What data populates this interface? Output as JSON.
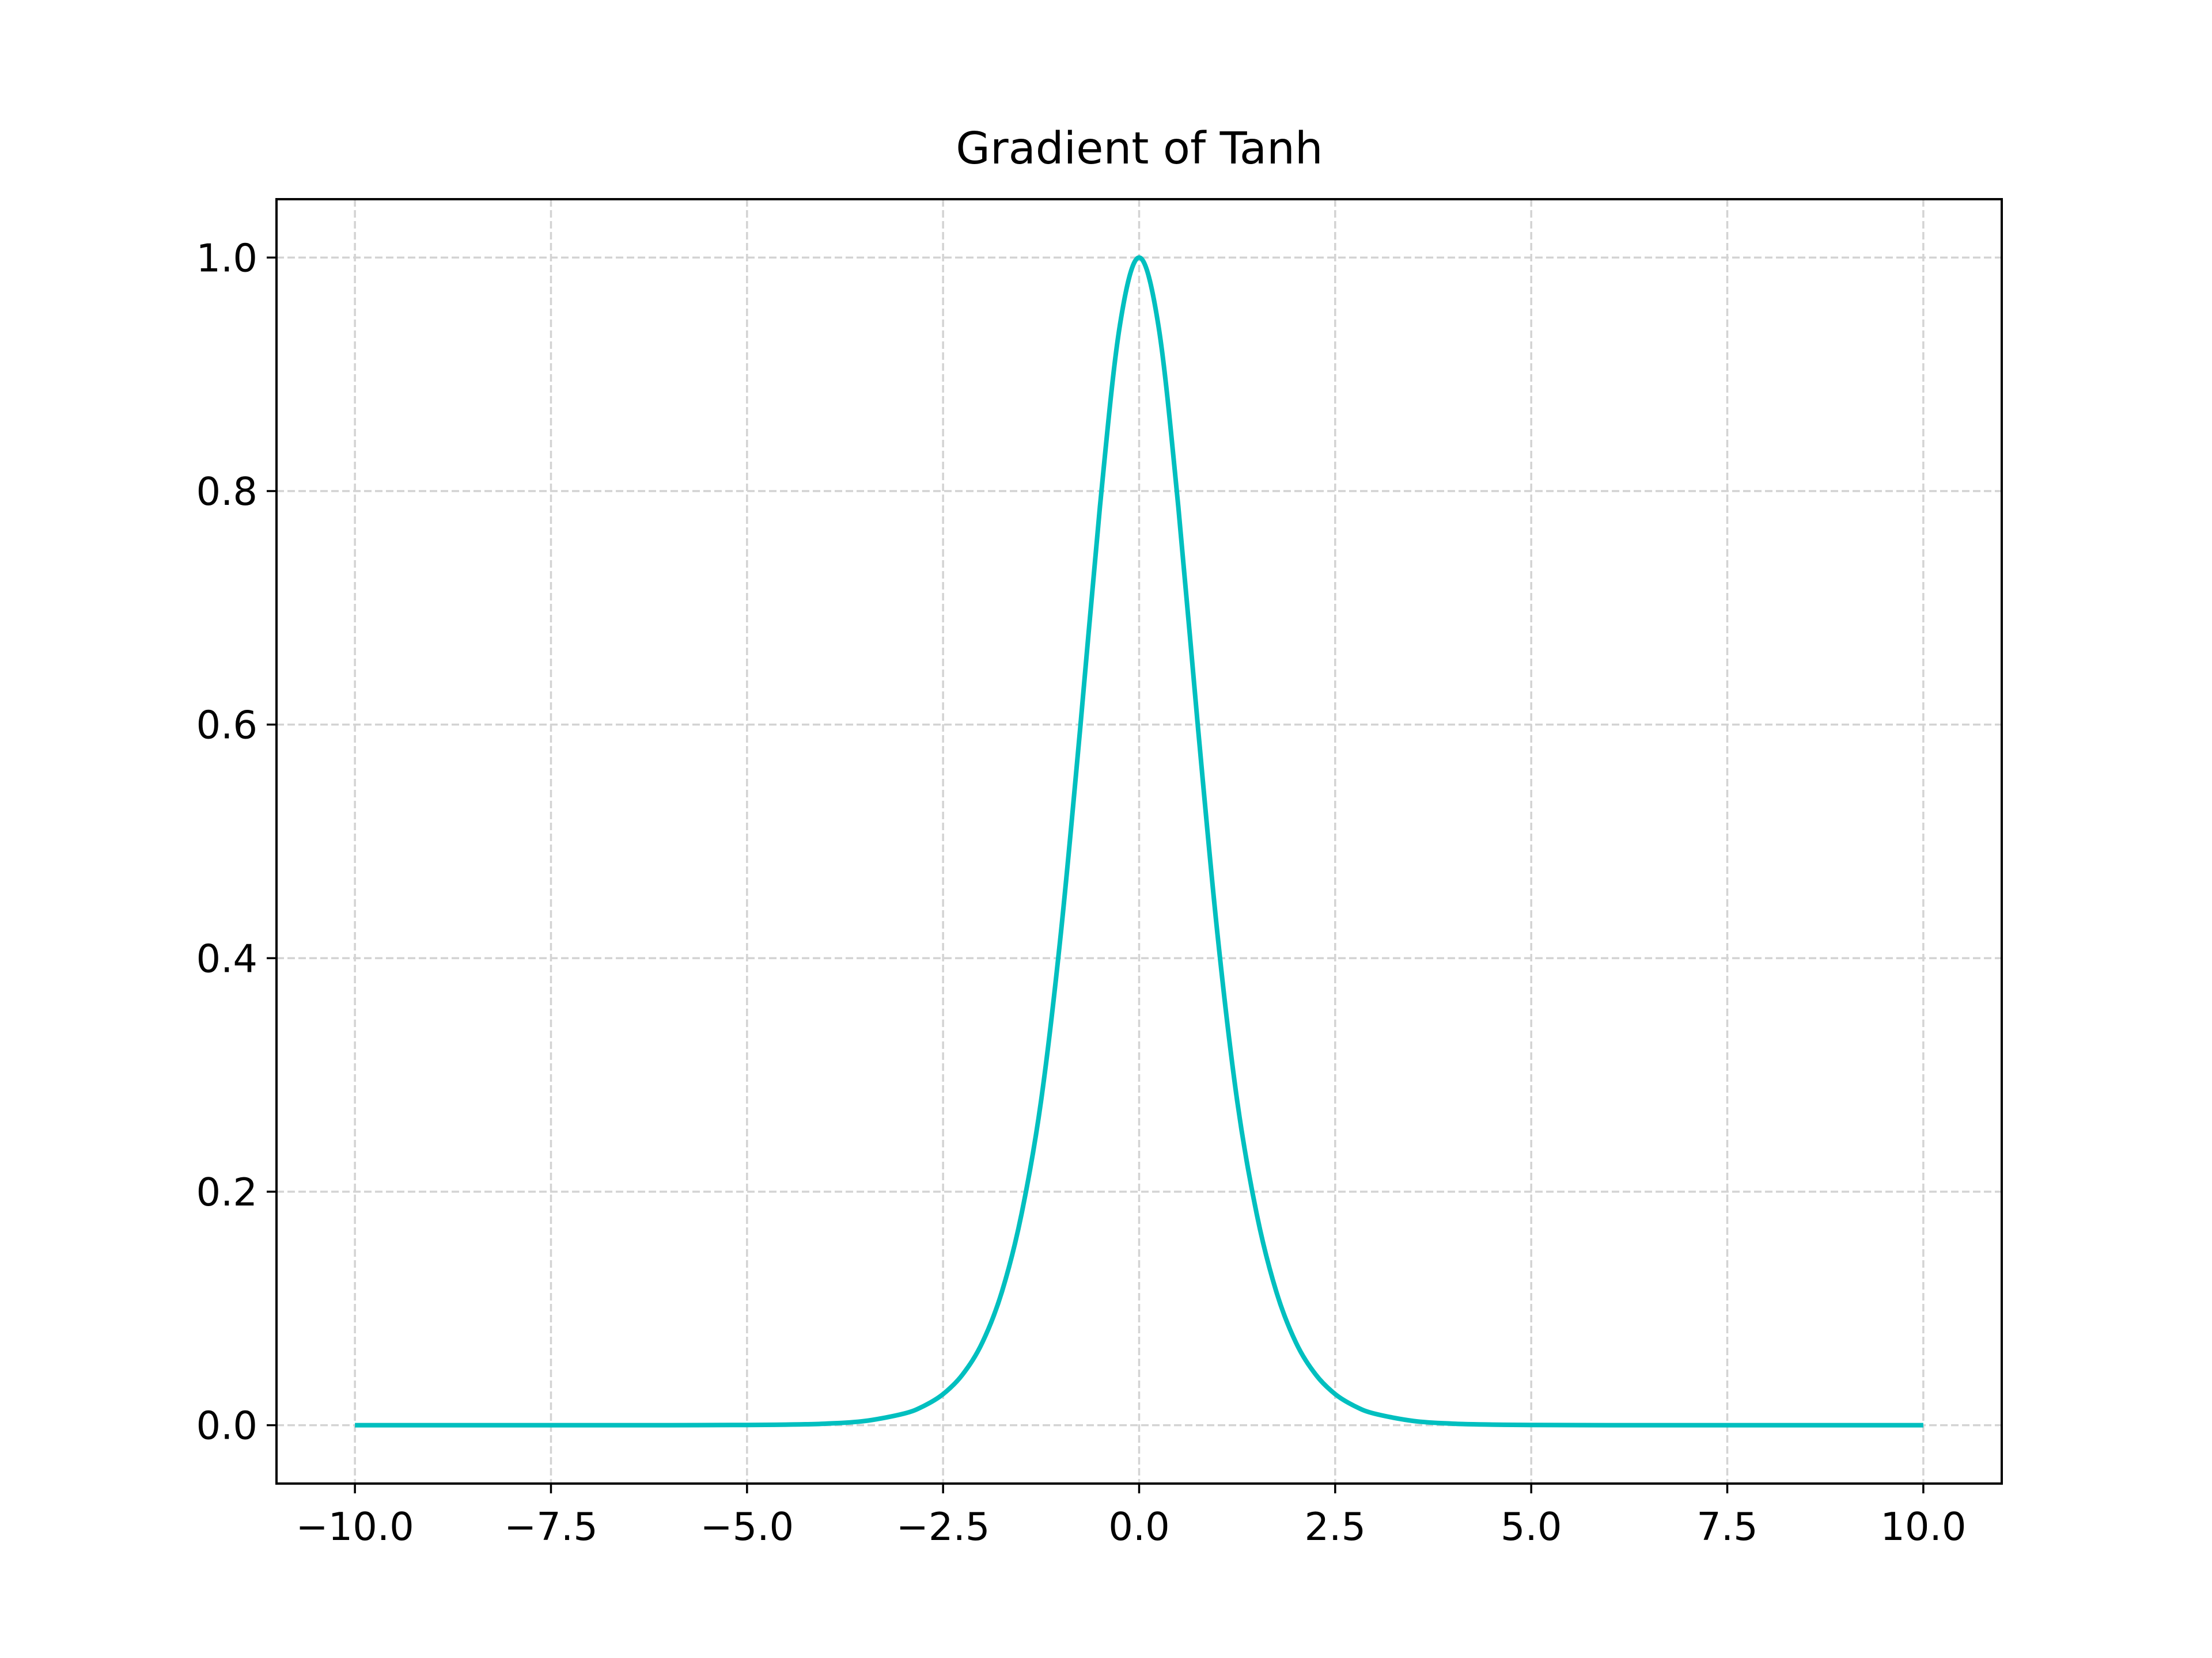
{
  "chart_data": {
    "type": "line",
    "title": "Gradient of Tanh",
    "xlabel": "",
    "ylabel": "",
    "xlim": [
      -11.0,
      11.0
    ],
    "ylim": [
      -0.05,
      1.05
    ],
    "x_ticks": [
      -10.0,
      -7.5,
      -5.0,
      -2.5,
      0.0,
      2.5,
      5.0,
      7.5,
      10.0
    ],
    "x_tick_labels": [
      "−10.0",
      "−7.5",
      "−5.0",
      "−2.5",
      "0.0",
      "2.5",
      "5.0",
      "7.5",
      "10.0"
    ],
    "y_ticks": [
      0.0,
      0.2,
      0.4,
      0.6,
      0.8,
      1.0
    ],
    "y_tick_labels": [
      "0.0",
      "0.2",
      "0.4",
      "0.6",
      "0.8",
      "1.0"
    ],
    "grid": true,
    "grid_style": "dashed",
    "legend": false,
    "series": [
      {
        "color": "#00BFBF",
        "x": [
          -10.0,
          -9.0,
          -8.0,
          -7.0,
          -6.0,
          -5.0,
          -4.5,
          -4.0,
          -3.5,
          -3.0,
          -2.75,
          -2.5,
          -2.25,
          -2.0,
          -1.75,
          -1.5,
          -1.25,
          -1.0,
          -0.75,
          -0.5,
          -0.25,
          0.0,
          0.25,
          0.5,
          0.75,
          1.0,
          1.25,
          1.5,
          1.75,
          2.0,
          2.25,
          2.5,
          2.75,
          3.0,
          3.5,
          4.0,
          4.5,
          5.0,
          6.0,
          7.0,
          8.0,
          9.0,
          10.0
        ],
        "y": [
          0.0,
          0.0,
          0.0,
          0.0,
          0.0,
          0.0002,
          0.0005,
          0.0013,
          0.0036,
          0.0099,
          0.0163,
          0.0266,
          0.0435,
          0.0707,
          0.1142,
          0.1807,
          0.278,
          0.42,
          0.5979,
          0.7864,
          0.94,
          1.0,
          0.94,
          0.7864,
          0.5979,
          0.42,
          0.278,
          0.1807,
          0.1142,
          0.0707,
          0.0435,
          0.0266,
          0.0163,
          0.0099,
          0.0036,
          0.0013,
          0.0005,
          0.0002,
          0.0,
          0.0,
          0.0,
          0.0,
          0.0
        ]
      }
    ]
  }
}
